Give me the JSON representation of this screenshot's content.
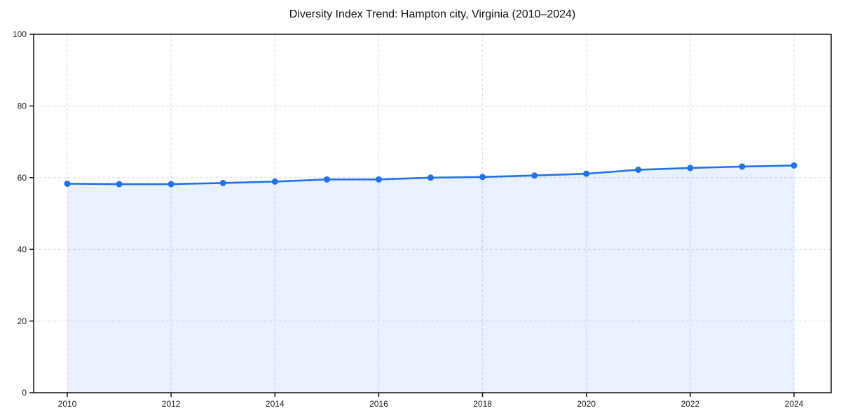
{
  "page": {
    "background": "#ffffff"
  },
  "chart_data": {
    "type": "area",
    "title": "Diversity Index Trend: Hampton city, Virginia (2010–2024)",
    "x": [
      2010,
      2011,
      2012,
      2013,
      2014,
      2015,
      2016,
      2017,
      2018,
      2019,
      2020,
      2021,
      2022,
      2023,
      2024
    ],
    "series": [
      {
        "name": "Diversity Index",
        "values": [
          58.3,
          58.2,
          58.2,
          58.5,
          58.9,
          59.5,
          59.5,
          60.0,
          60.2,
          60.6,
          61.1,
          62.2,
          62.7,
          63.1,
          63.4
        ]
      }
    ],
    "xlabel": "",
    "ylabel": "",
    "ylim": [
      0,
      100
    ],
    "yticks": [
      0,
      20,
      40,
      60,
      80,
      100
    ],
    "xticks": [
      2010,
      2012,
      2014,
      2016,
      2018,
      2020,
      2022,
      2024
    ],
    "grid": true,
    "grid_style": "dashed",
    "legend": false,
    "marker": "circle",
    "colors": {
      "line": "#2172e8",
      "marker": "#2172e8",
      "fill": "rgba(33,114,232,0.10)",
      "grid": "#dddddd",
      "axis": "#111111",
      "tick_label": "#1a1a1a",
      "title": "#111111",
      "background": "#ffffff"
    }
  }
}
